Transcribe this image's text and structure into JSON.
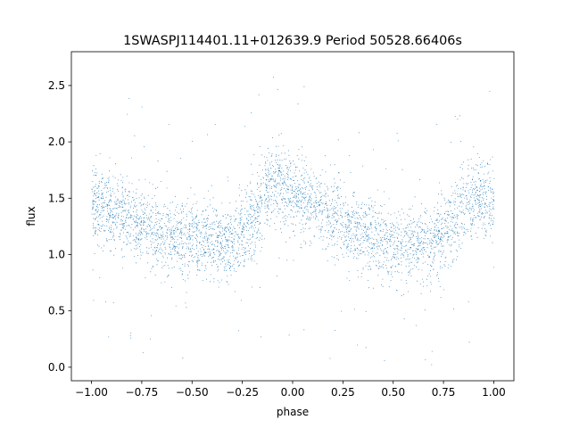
{
  "chart_data": {
    "type": "scatter",
    "title": "1SWASPJ114401.11+012639.9 Period 50528.66406s",
    "xlabel": "phase",
    "ylabel": "flux",
    "xlim": [
      -1.1,
      1.1
    ],
    "ylim": [
      -0.12,
      2.8
    ],
    "grid": false,
    "point_color": "#1f77b4",
    "x_ticks": [
      -1.0,
      -0.75,
      -0.5,
      -0.25,
      0.0,
      0.25,
      0.5,
      0.75,
      1.0
    ],
    "x_tick_labels": [
      "−1.00",
      "−0.75",
      "−0.50",
      "−0.25",
      "0.00",
      "0.25",
      "0.50",
      "0.75",
      "1.00"
    ],
    "y_ticks": [
      0.0,
      0.5,
      1.0,
      1.5,
      2.0,
      2.5
    ],
    "y_tick_labels": [
      "0.0",
      "0.5",
      "1.0",
      "1.5",
      "2.0",
      "2.5"
    ],
    "series": [
      {
        "phase": [
          -1.0,
          -0.9,
          -0.8,
          -0.7,
          -0.6,
          -0.5,
          -0.4,
          -0.3,
          -0.2,
          -0.1,
          0.0,
          0.1,
          0.2,
          0.3,
          0.4,
          0.5,
          0.6,
          0.7,
          0.8,
          0.9,
          1.0
        ],
        "flux_median": [
          1.46,
          1.4,
          1.3,
          1.22,
          1.17,
          1.13,
          1.1,
          1.1,
          1.3,
          1.65,
          1.55,
          1.42,
          1.33,
          1.23,
          1.15,
          1.1,
          1.08,
          1.1,
          1.3,
          1.5,
          1.46
        ],
        "flux_scatter": 0.17,
        "n_points": 40000
      }
    ]
  }
}
